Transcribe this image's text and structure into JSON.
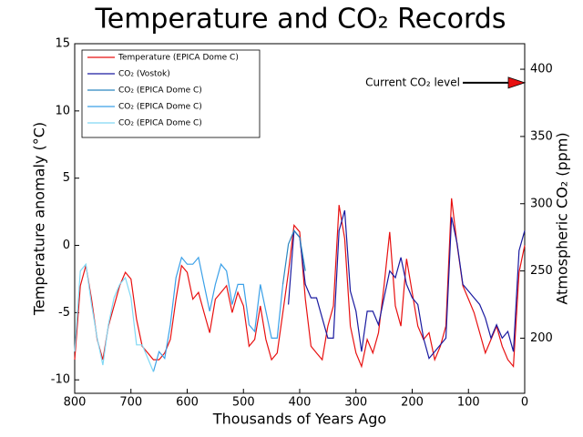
{
  "chart_data": {
    "type": "line",
    "title": "Temperature and CO₂ Records",
    "x_label": "Thousands of Years Ago",
    "y_label": "Temperature anomaly (°C)",
    "y2_label": "Atmospheric CO₂ (ppm)",
    "xlim": [
      800,
      0
    ],
    "xticks": [
      800,
      700,
      600,
      500,
      400,
      300,
      200,
      100,
      0
    ],
    "ylim": [
      -11,
      15
    ],
    "yticks": [
      -10,
      -5,
      0,
      5,
      10,
      15
    ],
    "y2lim": [
      159,
      419
    ],
    "y2ticks": [
      200,
      250,
      300,
      350,
      400
    ],
    "annotation": {
      "text": "Current CO₂ level",
      "value": 390,
      "color": "#e81010"
    },
    "series": [
      {
        "name": "Temperature (EPICA Dome C)",
        "color": "#e81010",
        "axis": "y",
        "x": [
          800,
          790,
          780,
          770,
          760,
          750,
          740,
          730,
          720,
          710,
          700,
          690,
          680,
          670,
          660,
          650,
          640,
          630,
          620,
          610,
          600,
          590,
          580,
          570,
          560,
          550,
          540,
          530,
          520,
          510,
          500,
          490,
          480,
          470,
          460,
          450,
          440,
          430,
          420,
          410,
          400,
          390,
          380,
          370,
          360,
          350,
          340,
          330,
          320,
          310,
          300,
          290,
          280,
          270,
          260,
          250,
          240,
          230,
          220,
          210,
          200,
          190,
          180,
          170,
          160,
          150,
          140,
          130,
          120,
          110,
          100,
          90,
          80,
          70,
          60,
          50,
          40,
          30,
          20,
          10,
          0
        ],
        "values": [
          -8.5,
          -3,
          -1.5,
          -4,
          -7,
          -8.5,
          -6,
          -4.5,
          -3,
          -2,
          -2.5,
          -5.5,
          -7.5,
          -8,
          -8.5,
          -8.5,
          -8,
          -7,
          -4,
          -1.5,
          -2,
          -4,
          -3.5,
          -5,
          -6.5,
          -4,
          -3.5,
          -3,
          -5,
          -3.5,
          -4.5,
          -7.5,
          -7,
          -4.5,
          -7,
          -8.5,
          -8,
          -5,
          -2,
          1.5,
          1,
          -4,
          -7.5,
          -8,
          -8.5,
          -6,
          -4.5,
          3,
          0.5,
          -6,
          -8,
          -9,
          -7,
          -8,
          -6.5,
          -3,
          1,
          -4.5,
          -6,
          -1,
          -3.5,
          -6,
          -7,
          -6.5,
          -8.5,
          -7.5,
          -6,
          3.5,
          0,
          -3,
          -4,
          -5,
          -6.5,
          -8,
          -7,
          -6,
          -7.5,
          -8.5,
          -9,
          -2,
          0
        ]
      },
      {
        "name": "CO₂ (Vostok)",
        "color": "#1a1aa0",
        "axis": "y2",
        "x": [
          420,
          410,
          400,
          390,
          380,
          370,
          360,
          350,
          340,
          330,
          320,
          310,
          300,
          290,
          280,
          270,
          260,
          250,
          240,
          230,
          220,
          210,
          200,
          190,
          180,
          170,
          160,
          150,
          140,
          130,
          120,
          110,
          100,
          90,
          80,
          70,
          60,
          50,
          40,
          30,
          20,
          10,
          0
        ],
        "values": [
          225,
          280,
          275,
          240,
          230,
          230,
          215,
          200,
          200,
          280,
          295,
          235,
          220,
          190,
          220,
          220,
          210,
          230,
          250,
          245,
          260,
          240,
          230,
          225,
          200,
          185,
          190,
          195,
          200,
          290,
          270,
          240,
          235,
          230,
          225,
          215,
          200,
          210,
          200,
          205,
          190,
          265,
          280
        ]
      },
      {
        "name": "CO₂ (EPICA Dome C)",
        "color": "#2a86c0",
        "axis": "y2",
        "x": [
          430,
          420,
          410,
          400,
          390
        ],
        "values": [
          240,
          270,
          280,
          275,
          250
        ]
      },
      {
        "name": "CO₂ (EPICA Dome C)",
        "color": "#3aa0e8",
        "axis": "y2",
        "x": [
          660,
          650,
          640,
          630,
          620,
          610,
          600,
          590,
          580,
          570,
          560,
          550,
          540,
          530,
          520,
          510,
          500,
          490,
          480,
          470,
          460,
          450,
          440,
          430
        ],
        "values": [
          175,
          190,
          185,
          210,
          245,
          260,
          255,
          255,
          260,
          240,
          220,
          240,
          255,
          250,
          225,
          240,
          240,
          210,
          205,
          240,
          220,
          200,
          200,
          240
        ]
      },
      {
        "name": "CO₂ (EPICA Dome C)",
        "color": "#80d8f4",
        "axis": "y2",
        "x": [
          800,
          790,
          780,
          770,
          760,
          750,
          740,
          730,
          720,
          710,
          700,
          690,
          680,
          670,
          660
        ],
        "values": [
          190,
          250,
          255,
          225,
          200,
          180,
          210,
          230,
          240,
          245,
          230,
          195,
          195,
          185,
          175
        ]
      }
    ]
  }
}
